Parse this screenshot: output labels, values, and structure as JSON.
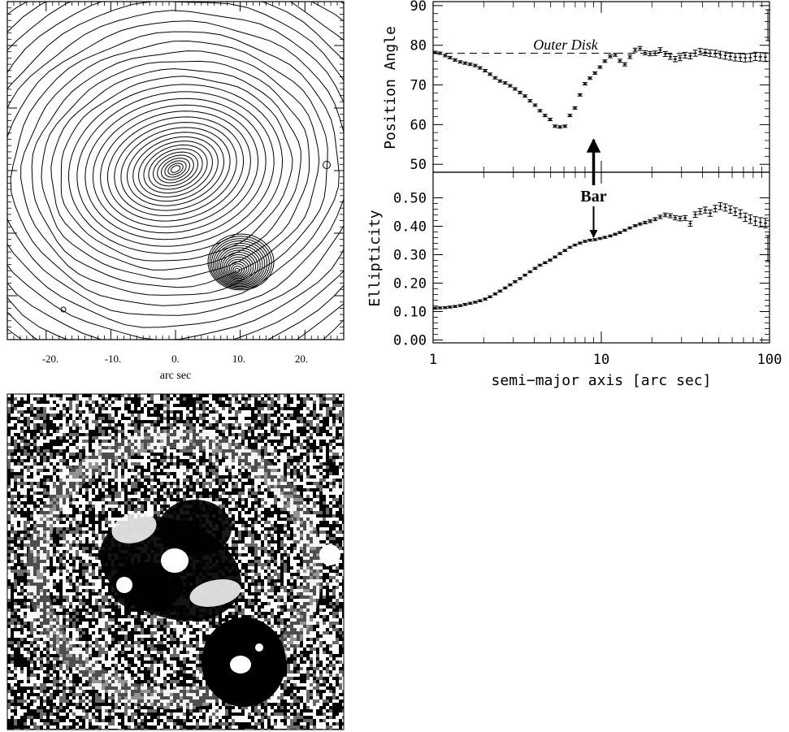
{
  "contour_map": {
    "xlabel": "arc sec",
    "tick_labels": [
      "-20.",
      "-10.",
      "0.",
      "10.",
      "20."
    ],
    "tick_values": [
      -20,
      -10,
      0,
      10,
      20
    ],
    "xlim": [
      -26,
      26
    ]
  },
  "annotations": {
    "outer_disk": "Outer Disk",
    "bar": "Bar"
  },
  "chart_data": [
    {
      "type": "scatter",
      "xlabel": "",
      "ylabel": "Position Angle",
      "xscale": "log",
      "xlim": [
        1,
        100
      ],
      "ylim": [
        48,
        91
      ],
      "yticks": [
        50,
        60,
        70,
        80,
        90
      ],
      "ytick_labels": [
        "50",
        "60",
        "70",
        "80",
        "90"
      ],
      "reference_line": {
        "y": 78,
        "style": "dashed",
        "label": "Outer Disk"
      },
      "bar_marker_x": 9,
      "series": [
        {
          "x": [
            1.03,
            1.1,
            1.18,
            1.26,
            1.35,
            1.45,
            1.55,
            1.66,
            1.78,
            1.9,
            2.04,
            2.18,
            2.34,
            2.5,
            2.68,
            2.87,
            3.07,
            3.29,
            3.52,
            3.77,
            4.04,
            4.32,
            4.63,
            4.96,
            5.31,
            5.68,
            6.08,
            6.51,
            6.97,
            7.47,
            8.0,
            8.56,
            9.17,
            9.82,
            10.5,
            11.3,
            12.1,
            12.9,
            13.8,
            14.8,
            15.9,
            17.0,
            18.2,
            19.5,
            20.9,
            22.4,
            24.0,
            25.7,
            27.5,
            29.4,
            31.5,
            33.8,
            36.2,
            38.7,
            41.5,
            44.4,
            47.6,
            51.0,
            54.6,
            58.5,
            62.6,
            67.1,
            71.8,
            76.9,
            82.4,
            88.3,
            94.5
          ],
          "y": [
            78.2,
            78.0,
            77.4,
            76.9,
            76.3,
            75.8,
            75.5,
            75.2,
            74.9,
            74.3,
            73.6,
            72.7,
            71.8,
            71.0,
            70.5,
            69.8,
            69.0,
            68.1,
            67.2,
            66.0,
            64.9,
            63.5,
            62.3,
            61.3,
            59.6,
            59.4,
            59.6,
            62.3,
            64.2,
            67.5,
            70.3,
            71.7,
            73.0,
            74.5,
            76.0,
            77.2,
            77.6,
            76.1,
            75.2,
            77.1,
            78.8,
            79.2,
            78.1,
            77.9,
            78.0,
            78.8,
            77.8,
            77.1,
            76.5,
            76.8,
            77.5,
            77.3,
            78.0,
            78.4,
            78.2,
            78.0,
            77.9,
            77.6,
            77.4,
            77.2,
            77.0,
            76.9,
            76.8,
            76.9,
            77.2,
            77.1,
            77.0
          ]
        }
      ]
    },
    {
      "type": "scatter",
      "xlabel": "semi−major axis [arc sec]",
      "ylabel": "Ellipticity",
      "xscale": "log",
      "xlim": [
        1,
        100
      ],
      "ylim": [
        -0.01,
        0.59
      ],
      "xticks": [
        1,
        10,
        100
      ],
      "xtick_labels": [
        "1",
        "10",
        "100"
      ],
      "yticks": [
        0.0,
        0.1,
        0.2,
        0.3,
        0.4,
        0.5
      ],
      "ytick_labels": [
        "0.00",
        "0.10",
        "0.20",
        "0.30",
        "0.40",
        "0.50"
      ],
      "series": [
        {
          "x": [
            1.03,
            1.1,
            1.18,
            1.26,
            1.35,
            1.45,
            1.55,
            1.66,
            1.78,
            1.9,
            2.04,
            2.18,
            2.34,
            2.5,
            2.68,
            2.87,
            3.07,
            3.29,
            3.52,
            3.77,
            4.04,
            4.32,
            4.63,
            4.96,
            5.31,
            5.68,
            6.08,
            6.51,
            6.97,
            7.47,
            8.0,
            8.56,
            9.17,
            9.82,
            10.5,
            11.3,
            12.1,
            12.9,
            13.8,
            14.8,
            15.9,
            17.0,
            18.2,
            19.5,
            20.9,
            22.4,
            24.0,
            25.7,
            27.5,
            29.4,
            31.5,
            33.8,
            36.2,
            38.7,
            41.5,
            44.4,
            47.6,
            51.0,
            54.6,
            58.5,
            62.6,
            67.1,
            71.8,
            76.9,
            82.4,
            88.3,
            94.5
          ],
          "y": [
            0.112,
            0.113,
            0.114,
            0.116,
            0.118,
            0.121,
            0.125,
            0.129,
            0.133,
            0.138,
            0.144,
            0.152,
            0.162,
            0.172,
            0.183,
            0.194,
            0.205,
            0.216,
            0.228,
            0.24,
            0.252,
            0.263,
            0.272,
            0.281,
            0.292,
            0.304,
            0.315,
            0.326,
            0.334,
            0.341,
            0.347,
            0.351,
            0.353,
            0.357,
            0.361,
            0.366,
            0.372,
            0.378,
            0.386,
            0.394,
            0.402,
            0.408,
            0.413,
            0.418,
            0.425,
            0.433,
            0.44,
            0.437,
            0.43,
            0.427,
            0.429,
            0.409,
            0.441,
            0.452,
            0.457,
            0.446,
            0.462,
            0.471,
            0.466,
            0.459,
            0.451,
            0.444,
            0.432,
            0.425,
            0.418,
            0.414,
            0.411
          ]
        }
      ]
    }
  ]
}
